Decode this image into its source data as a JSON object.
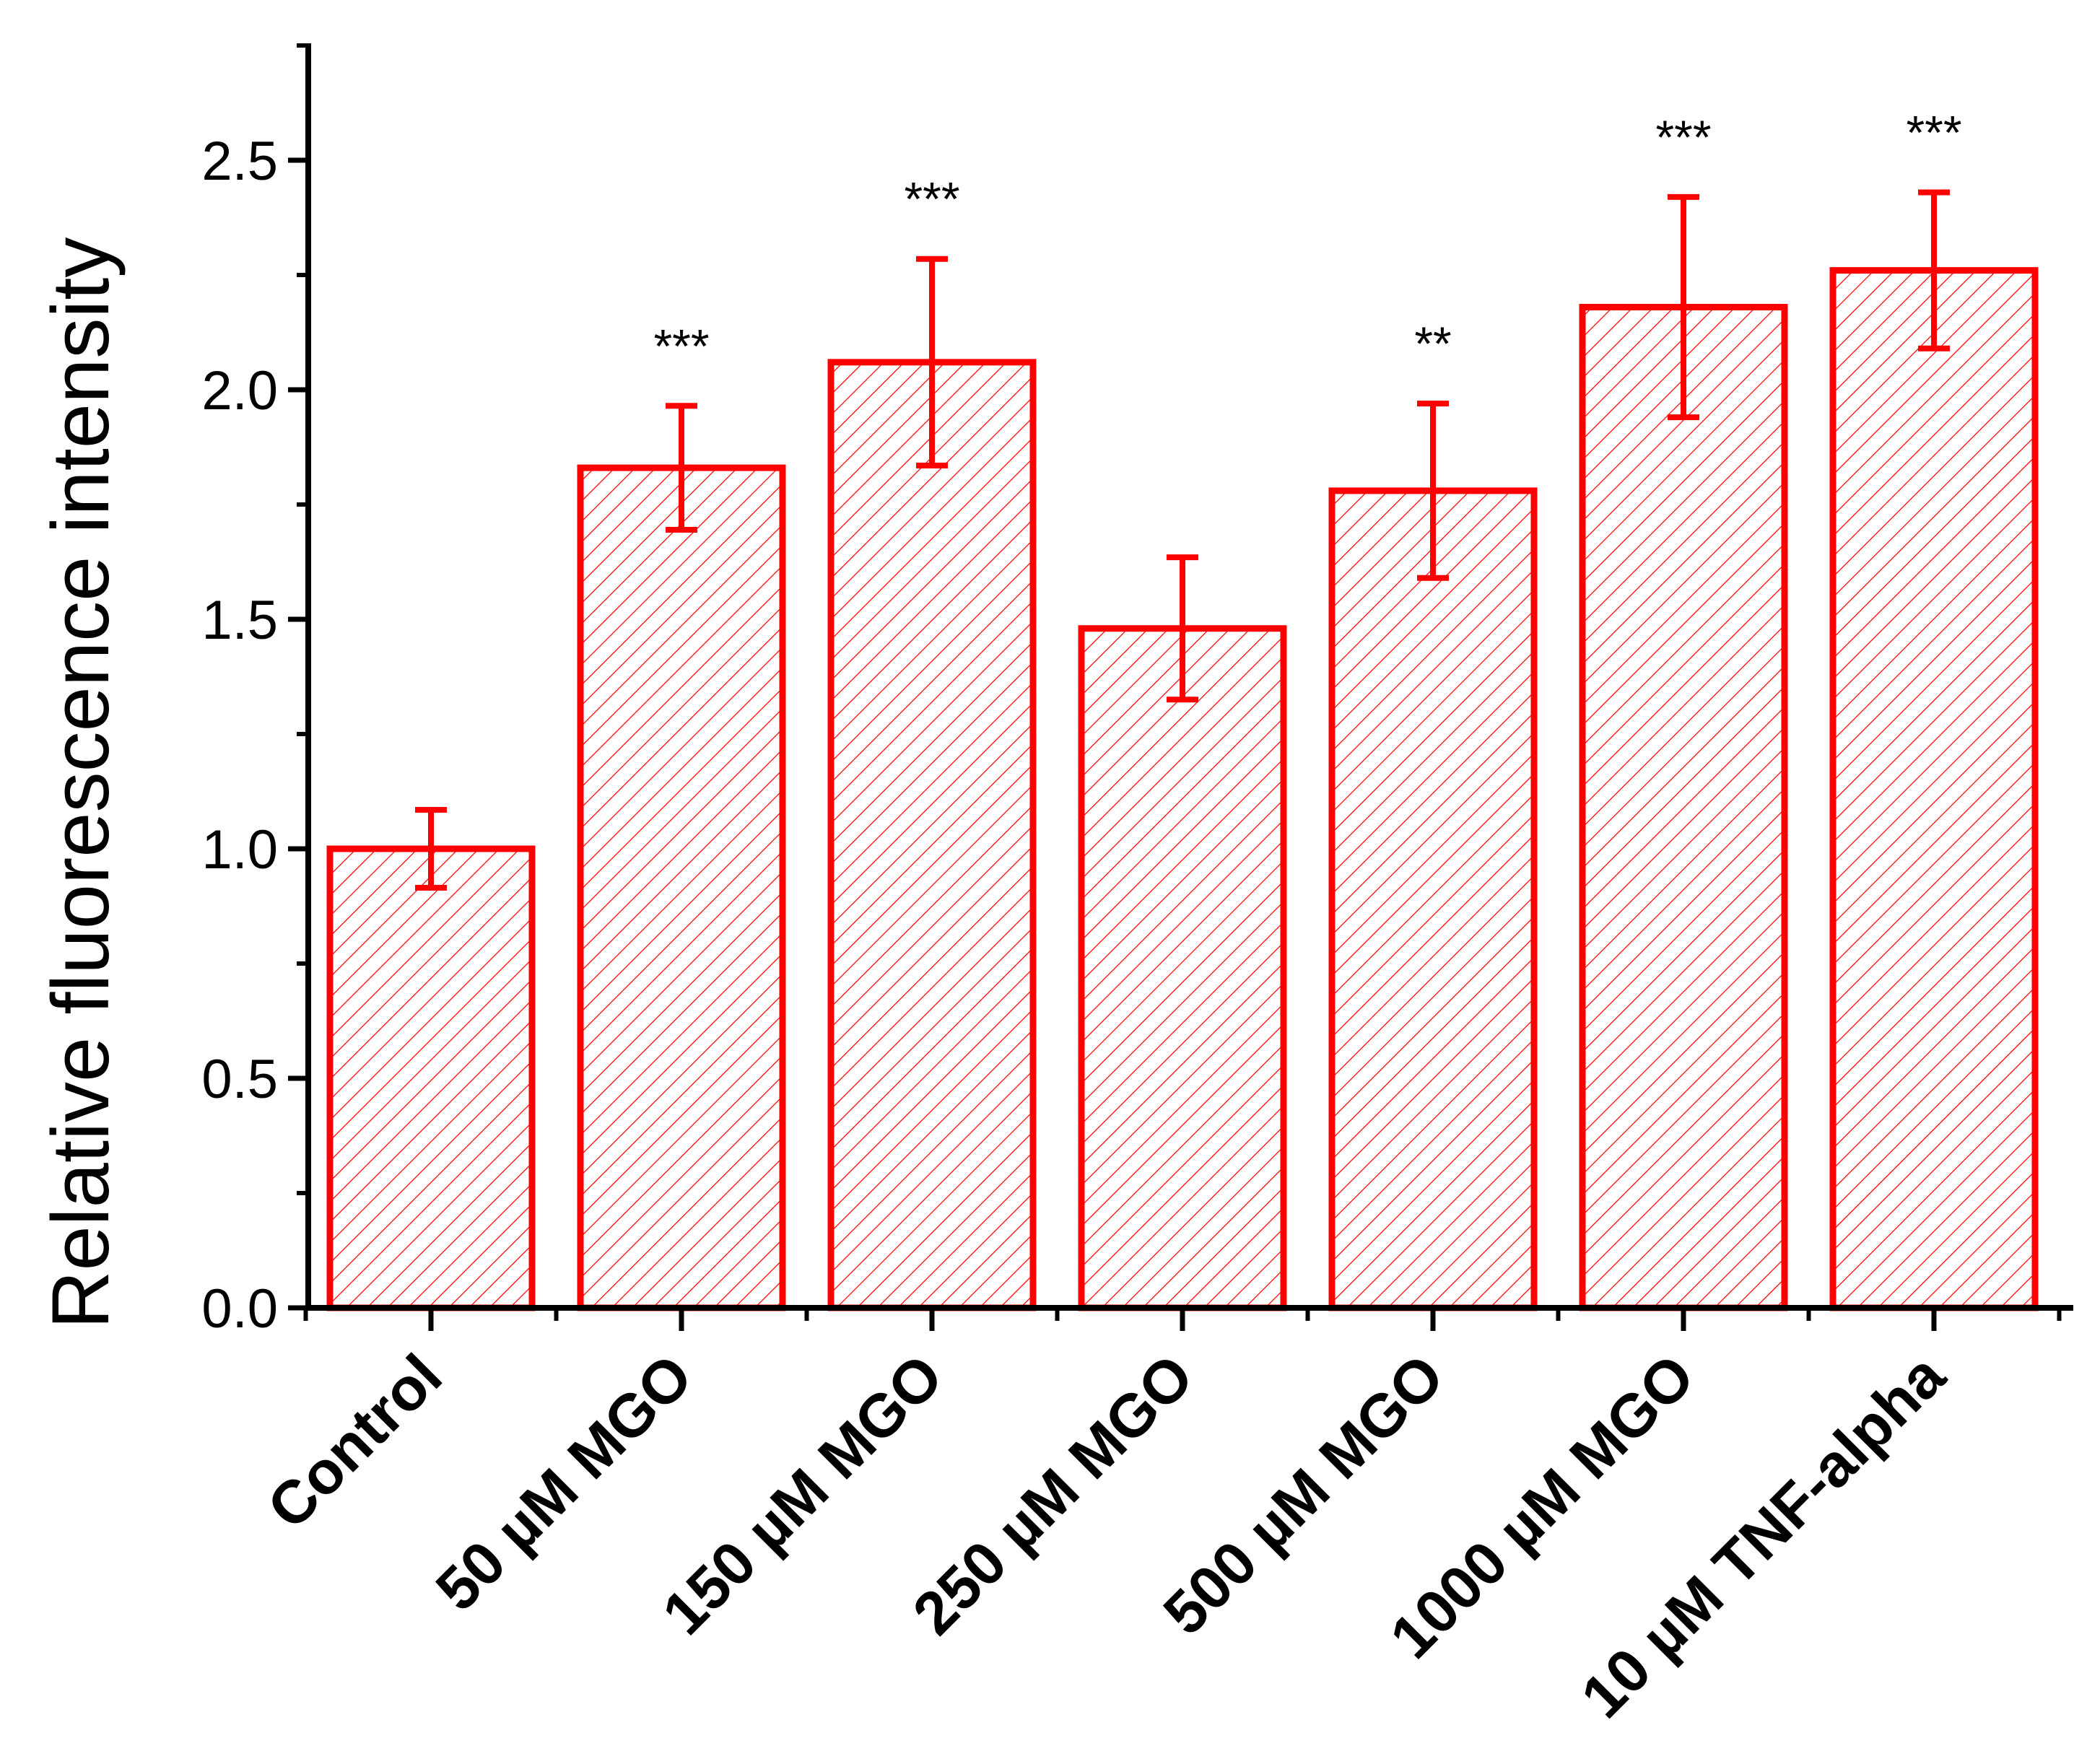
{
  "chart_data": {
    "type": "bar",
    "title": "",
    "xlabel": "",
    "ylabel": "Relative fluorescence intensity",
    "ylim": [
      0,
      2.75
    ],
    "yticks": [
      "0.0",
      "0.5",
      "1.0",
      "1.5",
      "2.0",
      "2.5"
    ],
    "categories": [
      "Control",
      "50 µM MGO",
      "150 µM MGO",
      "250 µM MGO",
      "500 µM MGO",
      "1000 µM MGO",
      "10 µM TNF-alpha"
    ],
    "values": [
      1.0,
      1.83,
      2.06,
      1.48,
      1.78,
      2.18,
      2.26
    ],
    "errors": [
      0.085,
      0.135,
      0.225,
      0.155,
      0.19,
      0.24,
      0.17
    ],
    "significance": [
      "",
      "***",
      "***",
      "",
      "**",
      "***",
      "***"
    ],
    "grid": false,
    "bar_color": "#ff0000",
    "hatch": "diagonal"
  }
}
